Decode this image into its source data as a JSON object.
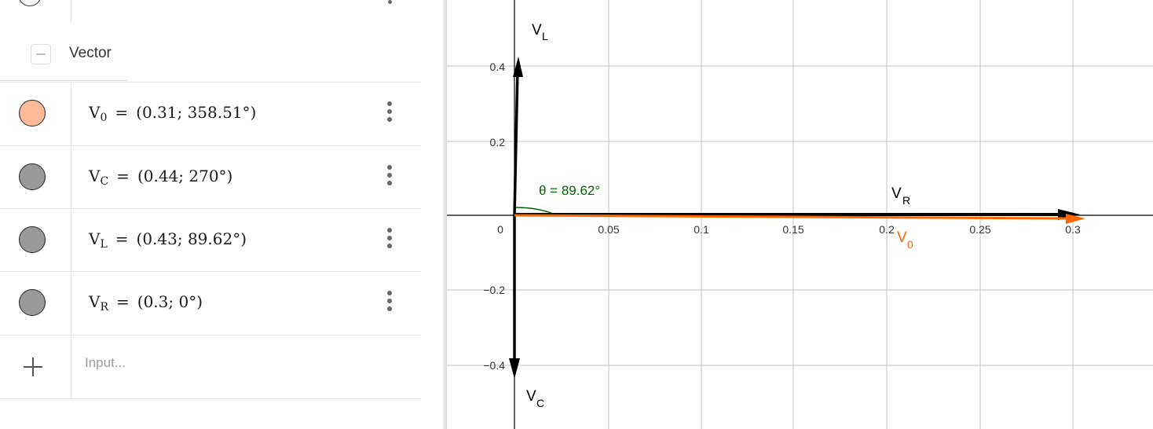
{
  "algebra": {
    "group_label": "Vector",
    "rows": [
      {
        "name": "V",
        "sub": "0",
        "eq": "=",
        "value": "(0.31; 358.51°)",
        "color": "#ffbb99"
      },
      {
        "name": "V",
        "sub": "C",
        "eq": "=",
        "value": "(0.44; 270°)",
        "color": "#999999"
      },
      {
        "name": "V",
        "sub": "L",
        "eq": "=",
        "value": "(0.43; 89.62°)",
        "color": "#999999"
      },
      {
        "name": "V",
        "sub": "R",
        "eq": "=",
        "value": "(0.3; 0°)",
        "color": "#999999"
      }
    ],
    "input_placeholder": "Input..."
  },
  "graph": {
    "x_ticks": [
      "0.05",
      "0.1",
      "0.15",
      "0.2",
      "0.25",
      "0.3"
    ],
    "y_ticks": [
      "0.4",
      "0.2",
      "−0.2",
      "−0.4"
    ],
    "origin_label": "0",
    "angle_label": "θ = 89.62°",
    "vector_labels": {
      "VL": {
        "main": "V",
        "sub": "L"
      },
      "VC": {
        "main": "V",
        "sub": "C"
      },
      "VR": {
        "main": "V",
        "sub": "R"
      },
      "V0": {
        "main": "V",
        "sub": "0"
      }
    },
    "colors": {
      "axis": "#000000",
      "grid": "#c0c0c0",
      "black_vector": "#000000",
      "orange_vector": "#ff6600",
      "angle": "#006400"
    }
  }
}
